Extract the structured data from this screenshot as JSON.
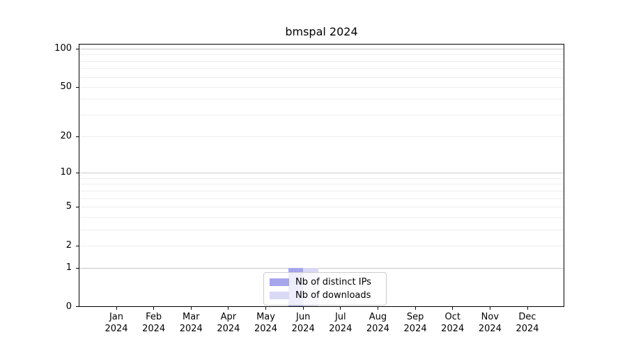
{
  "figure": {
    "title": "bmspal 2024"
  },
  "chart_data": {
    "type": "bar",
    "title": "bmspal 2024",
    "categories": [
      "Jan 2024",
      "Feb 2024",
      "Mar 2024",
      "Apr 2024",
      "May 2024",
      "Jun 2024",
      "Jul 2024",
      "Aug 2024",
      "Sep 2024",
      "Oct 2024",
      "Nov 2024",
      "Dec 2024"
    ],
    "series": [
      {
        "name": "Nb of distinct IPs",
        "color": "#a5a5ec",
        "values": [
          0,
          0,
          0,
          0,
          0,
          1,
          0,
          0,
          0,
          0,
          0,
          0
        ]
      },
      {
        "name": "Nb of downloads",
        "color": "#d9d9f6",
        "values": [
          0,
          0,
          0,
          0,
          0,
          1,
          0,
          0,
          0,
          0,
          0,
          0
        ]
      }
    ],
    "xlabel": "",
    "ylabel": "",
    "yscale": "log1p",
    "ylim": [
      0,
      100
    ],
    "y_tick_labels": [
      100,
      50,
      20,
      10,
      5,
      2,
      1,
      0
    ],
    "y_major_gridlines": [
      1,
      10,
      100
    ],
    "y_minor_gridlines": [
      2,
      3,
      4,
      5,
      6,
      7,
      8,
      9,
      20,
      30,
      40,
      50,
      60,
      70,
      80,
      90
    ],
    "grid": true,
    "legend_position": "lower center"
  },
  "colors": {
    "background": "#ffffff",
    "spine": "#000000",
    "grid_major": "#c9c9c9",
    "grid_minor": "#ededed",
    "text": "#000000",
    "legend_border": "#cccccc",
    "legend_background": "rgba(255,255,255,0.8)"
  }
}
